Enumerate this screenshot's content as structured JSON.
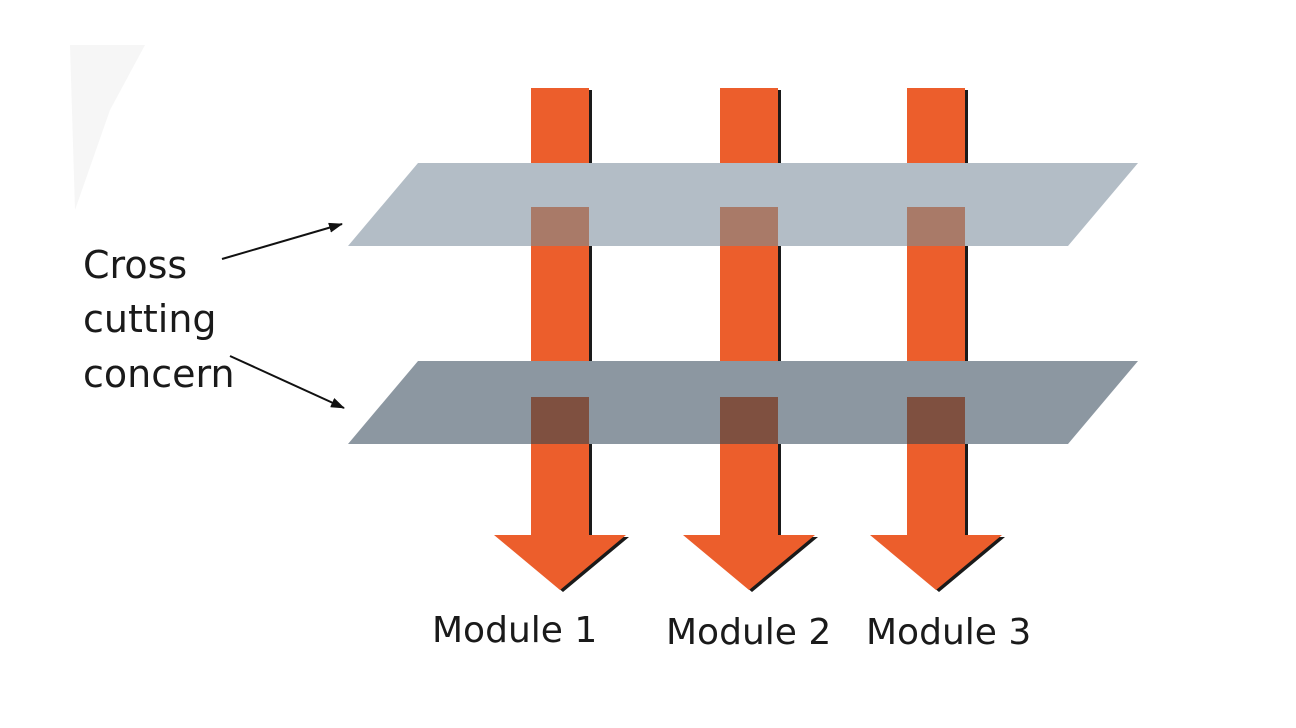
{
  "concern_label": {
    "lines": [
      "Cross",
      "cutting",
      "concern"
    ]
  },
  "modules": [
    {
      "label": "Module 1"
    },
    {
      "label": "Module 2"
    },
    {
      "label": "Module 3"
    }
  ],
  "planes": [
    {
      "name": "upper-concern-plane"
    },
    {
      "name": "lower-concern-plane"
    }
  ],
  "colors": {
    "arrow_fill": "#ec5e2c",
    "arrow_shadow": "#1a1a1a",
    "upper_plane": "#b3bdc6",
    "lower_plane": "#8c97a1",
    "upper_overlap": "#a97a68",
    "lower_overlap": "#7f5040",
    "pointer_line": "#111111"
  }
}
